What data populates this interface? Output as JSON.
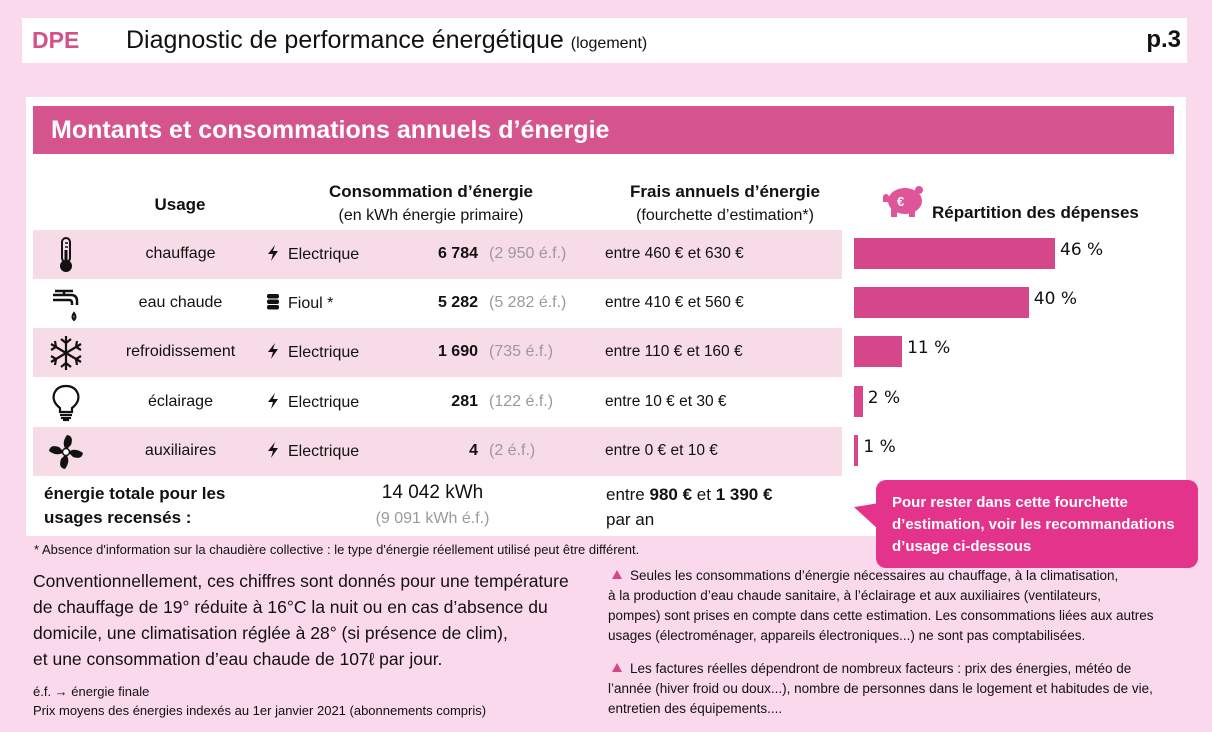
{
  "top_bar": {
    "badge": "DPE",
    "title": "Diagnostic de performance énergétique",
    "subtitle": "(logement)",
    "page": "p.3"
  },
  "section": {
    "title": "Montants et consommations annuels d’énergie"
  },
  "columns": {
    "usage": "Usage",
    "consumption_title": "Consommation d’énergie",
    "consumption_sub": "(en kWh énergie primaire)",
    "costs_title": "Frais annuels d’énergie",
    "costs_sub": "(fourchette d’estimation*)",
    "distribution_title": "Répartition des dépenses"
  },
  "rows": [
    {
      "icon": "thermometer-icon",
      "usage": "chauffage",
      "energy_icon": "bolt-icon",
      "energy": "Electrique",
      "consumption": "6 784",
      "final": "(2 950 é.f.)",
      "costs": "entre 460 € et 630 €",
      "share_label": "46 %",
      "share": 46
    },
    {
      "icon": "faucet-icon",
      "usage": "eau chaude",
      "energy_icon": "barrel-icon",
      "energy": "Fioul *",
      "consumption": "5 282",
      "final": "(5 282 é.f.)",
      "costs": "entre 410 € et 560 €",
      "share_label": "40 %",
      "share": 40
    },
    {
      "icon": "snowflake-icon",
      "usage": "refroidissement",
      "energy_icon": "bolt-icon",
      "energy": "Electrique",
      "consumption": "1 690",
      "final": "(735 é.f.)",
      "costs": "entre 110 € et 160 €",
      "share_label": "11 %",
      "share": 11
    },
    {
      "icon": "lightbulb-icon",
      "usage": "éclairage",
      "energy_icon": "bolt-icon",
      "energy": "Electrique",
      "consumption": "281",
      "final": "(122 é.f.)",
      "costs": "entre 10 € et 30 €",
      "share_label": "2 %",
      "share": 2
    },
    {
      "icon": "fan-icon",
      "usage": "auxiliaires",
      "energy_icon": "bolt-icon",
      "energy": "Electrique",
      "consumption": "4",
      "final": "(2 é.f.)",
      "costs": "entre 0 € et 10 €",
      "share_label": "1 %",
      "share": 1
    }
  ],
  "total": {
    "label_line1": "énergie totale pour les",
    "label_line2": "usages recensés :",
    "kwh": "14 042 kWh",
    "final": "(9 091 kWh é.f.)",
    "costs_prefix": "entre",
    "costs_min": "980 €",
    "costs_mid": "et",
    "costs_max": "1 390 €",
    "costs_suffix": "par an"
  },
  "callout": {
    "line1": "Pour rester dans cette fourchette",
    "line2": "d’estimation, voir les recommandations",
    "line3": "d’usage ci-dessous"
  },
  "footnote": "* Absence d'information sur la chaudière collective : le type d'énergie réellement utilisé peut être différent.",
  "conventions": [
    "Conventionnellement, ces chiffres sont donnés pour une température",
    "de chauffage de 19° réduite à 16°C la nuit ou en cas d’absence du",
    "domicile, une climatisation réglée à 28° (si présence de clim),",
    "et une consommation d’eau chaude de 107ℓ par jour."
  ],
  "ef_definition": "é.f. → énergie finale",
  "prices_note": "Prix moyens des énergies indexés au  1er janvier 2021 (abonnements compris)",
  "notes": {
    "note1": [
      "Seules les consommations d’énergie nécessaires au chauffage, à la climatisation,",
      "à la production d’eau chaude sanitaire, à l’éclairage et aux auxiliaires (ventilateurs,",
      "pompes) sont prises en compte dans cette estimation. Les consommations liées aux autres",
      "usages (électroménager, appareils électroniques...) ne sont pas comptabilisées."
    ],
    "note2": [
      "Les factures réelles dépendront de nombreux facteurs : prix des énergies, météo de",
      "l’année (hiver froid ou doux...), nombre de personnes dans le logement et habitudes de vie,",
      "entretien des équipements...."
    ]
  },
  "colors": {
    "background": "#fbd9ec",
    "accent": "#d6548d",
    "bar": "#d6468a",
    "callout": "#e4338a",
    "row_pink": "#f7dbe6"
  }
}
